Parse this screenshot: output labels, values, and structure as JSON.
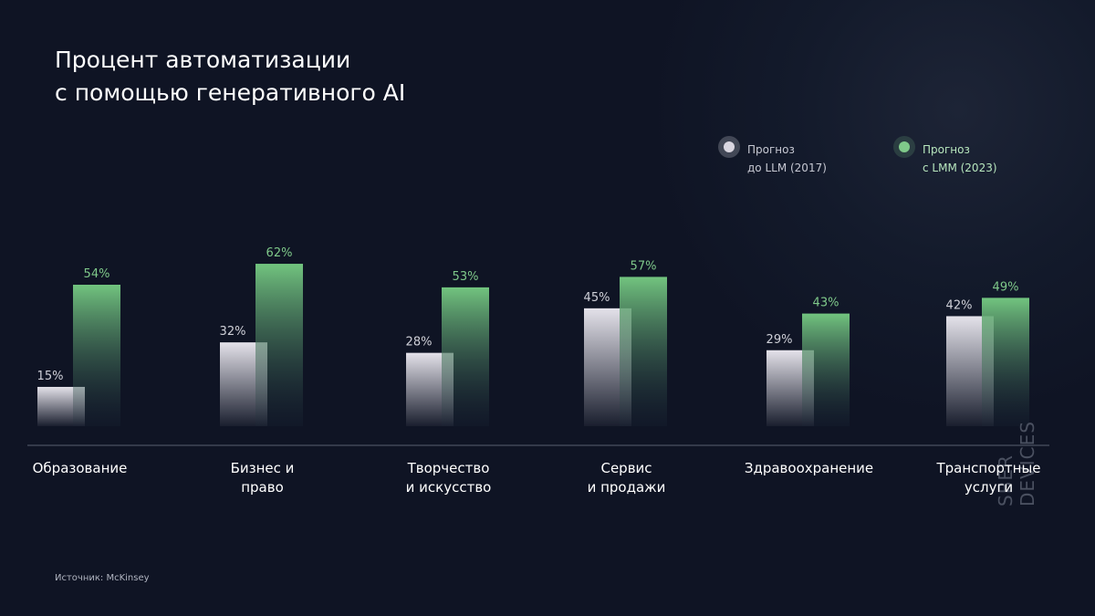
{
  "chart_data": {
    "type": "bar",
    "title": "Процент автоматизации\nс помощью генеративного AI",
    "categories": [
      "Образование",
      "Бизнес и\nправо",
      "Творчество\nи искусство",
      "Сервис\nи продажи",
      "Здравоохранение",
      "Транспортные\nуслуги"
    ],
    "series": [
      {
        "name": "Прогноз\nдо LLM (2017)",
        "color": "#d9d6e0",
        "values": [
          15,
          32,
          28,
          45,
          29,
          42
        ],
        "value_labels": [
          "15%",
          "32%",
          "28%",
          "45%",
          "29%",
          "42%"
        ]
      },
      {
        "name": "Прогноз\nс LMM (2023)",
        "color": "#7fc98a",
        "values": [
          54,
          62,
          53,
          57,
          43,
          49
        ],
        "value_labels": [
          "54%",
          "62%",
          "53%",
          "57%",
          "43%",
          "49%"
        ]
      }
    ],
    "source": "Источник: McKinsey",
    "brand": "SBER DEVICES"
  }
}
